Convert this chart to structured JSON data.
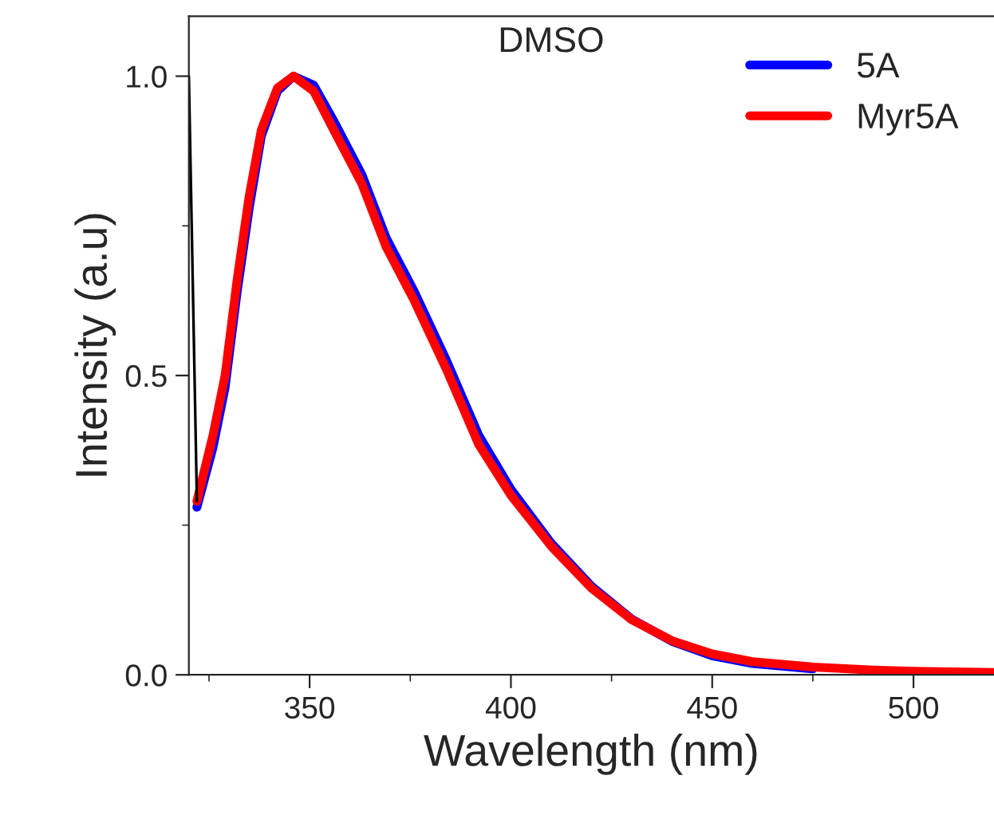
{
  "chart_data": {
    "type": "line",
    "xlabel": "Wavelength (nm)",
    "ylabel": "Intensity (a.u)",
    "annotations": [
      "DMSO"
    ],
    "x": [
      322,
      326,
      329,
      332,
      335,
      338,
      342,
      346,
      351,
      356,
      363,
      369,
      376,
      384,
      392,
      400,
      410,
      420,
      430,
      440,
      450,
      460,
      475,
      490,
      500,
      510,
      520
    ],
    "series": [
      {
        "name": "5A",
        "color": "#0000ff",
        "values": [
          0.28,
          0.38,
          0.48,
          0.64,
          0.78,
          0.9,
          0.975,
          1.0,
          0.985,
          0.925,
          0.835,
          0.73,
          0.64,
          0.525,
          0.4,
          0.31,
          0.22,
          0.148,
          0.093,
          0.056,
          0.032,
          0.019,
          0.01,
          null,
          null,
          null,
          null
        ]
      },
      {
        "name": "Myr5A",
        "color": "#ff0000",
        "values": [
          0.29,
          0.4,
          0.5,
          0.66,
          0.8,
          0.91,
          0.98,
          1.0,
          0.975,
          0.91,
          0.82,
          0.715,
          0.625,
          0.51,
          0.385,
          0.3,
          0.215,
          0.145,
          0.092,
          0.057,
          0.035,
          0.022,
          0.013,
          0.008,
          0.006,
          0.005,
          0.004
        ]
      },
      {
        "color": "#000000",
        "x": [
          320,
          322
        ],
        "values": [
          1.0,
          0.29
        ]
      }
    ],
    "xlim": [
      320,
      520
    ],
    "ylim": [
      0,
      1.1
    ],
    "xticks": [
      350,
      400,
      450,
      500
    ],
    "yticks": [
      {
        "value": 0,
        "label": "0.0"
      },
      {
        "value": 0.5,
        "label": "0.5"
      },
      {
        "value": 1.0,
        "label": "1.0"
      }
    ],
    "grid": false,
    "legend": "top right",
    "marker": "none",
    "line_style": "solid"
  }
}
